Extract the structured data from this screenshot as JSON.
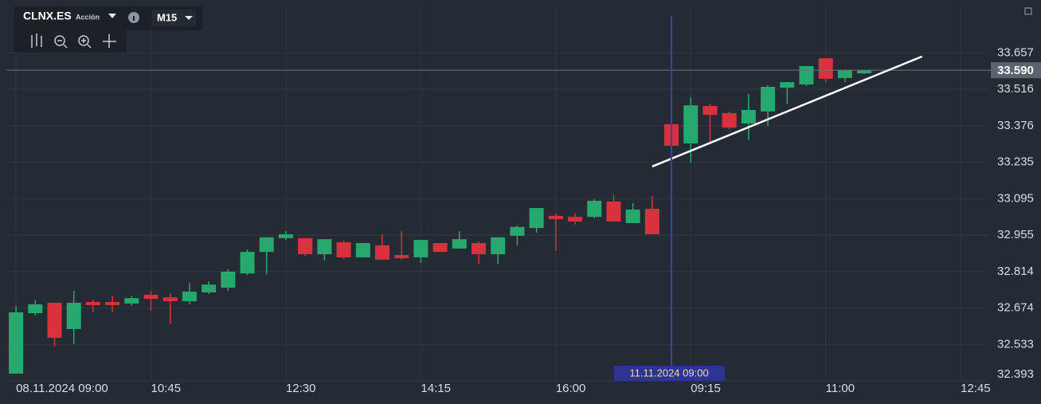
{
  "toolbar": {
    "symbol": "CLNX.ES",
    "kind": "Acción",
    "timeframe": "M15"
  },
  "chart_data": {
    "type": "candlestick",
    "up_color": "#26a86f",
    "down_color": "#d9323f",
    "open": [
      32.421,
      32.654,
      32.694,
      32.593,
      32.697,
      32.697,
      32.691,
      32.725,
      32.715,
      32.7,
      32.734,
      32.752,
      32.807,
      32.89,
      32.943,
      32.943,
      32.881,
      32.927,
      32.869,
      32.915,
      32.878,
      32.869,
      32.924,
      32.903,
      32.924,
      32.881,
      32.952,
      32.982,
      33.029,
      33.025,
      33.025,
      33.084,
      33.001,
      33.056,
      33.382,
      33.308,
      33.452,
      33.425,
      33.385,
      33.431,
      33.523,
      33.535,
      33.636,
      33.56,
      33.578
    ],
    "high": [
      32.682,
      32.703,
      32.694,
      32.74,
      32.706,
      32.721,
      32.721,
      32.74,
      32.731,
      32.771,
      32.777,
      32.823,
      32.9,
      32.946,
      32.97,
      32.943,
      32.939,
      32.933,
      32.924,
      32.958,
      32.97,
      32.936,
      32.924,
      32.97,
      32.93,
      32.946,
      32.992,
      33.059,
      33.038,
      33.038,
      33.093,
      33.108,
      33.078,
      33.105,
      33.382,
      33.486,
      33.461,
      33.431,
      33.498,
      33.532,
      33.544,
      33.606,
      33.636,
      33.593,
      33.59
    ],
    "low": [
      32.421,
      32.645,
      32.525,
      32.534,
      32.657,
      32.657,
      32.682,
      32.663,
      32.611,
      32.688,
      32.728,
      32.74,
      32.801,
      32.804,
      32.936,
      32.875,
      32.857,
      32.863,
      32.869,
      32.86,
      32.86,
      32.847,
      32.89,
      32.903,
      32.844,
      32.844,
      32.915,
      32.964,
      32.893,
      32.995,
      33.019,
      33.007,
      33.001,
      32.958,
      33.299,
      33.234,
      33.308,
      33.363,
      33.32,
      33.375,
      33.461,
      33.529,
      33.544,
      33.544,
      33.575
    ],
    "close": [
      32.657,
      32.688,
      32.559,
      32.694,
      32.685,
      32.685,
      32.712,
      32.709,
      32.7,
      32.737,
      32.764,
      32.814,
      32.89,
      32.946,
      32.958,
      32.881,
      32.939,
      32.869,
      32.924,
      32.86,
      32.866,
      32.936,
      32.89,
      32.939,
      32.881,
      32.946,
      32.986,
      33.059,
      33.016,
      33.007,
      33.087,
      33.007,
      33.053,
      32.958,
      33.299,
      33.455,
      33.418,
      33.369,
      33.437,
      33.526,
      33.544,
      33.606,
      33.557,
      33.59,
      33.59
    ],
    "xlim": [
      -0.5,
      50.4
    ],
    "xticks": [
      {
        "value": 0,
        "label": "08.11.2024 09:00"
      },
      {
        "value": 7,
        "label": "10:45"
      },
      {
        "value": 14,
        "label": "12:30"
      },
      {
        "value": 21,
        "label": "14:15"
      },
      {
        "value": 28,
        "label": "16:00"
      },
      {
        "value": 35,
        "label": "09:15"
      },
      {
        "value": 42,
        "label": "11:00"
      },
      {
        "value": 49,
        "label": "12:45"
      }
    ],
    "ylim": [
      32.393,
      33.836
    ],
    "yticks": [
      32.393,
      32.533,
      32.674,
      32.814,
      32.955,
      33.095,
      33.235,
      33.376,
      33.516,
      33.657
    ],
    "grid": true,
    "last_price": {
      "value": 33.59,
      "label": "33.590"
    },
    "crosshair": {
      "x": 34,
      "label": "11.11.2024 09:00"
    },
    "trendline": {
      "x": [
        33,
        47
      ],
      "y": [
        33.219,
        33.643
      ]
    }
  }
}
